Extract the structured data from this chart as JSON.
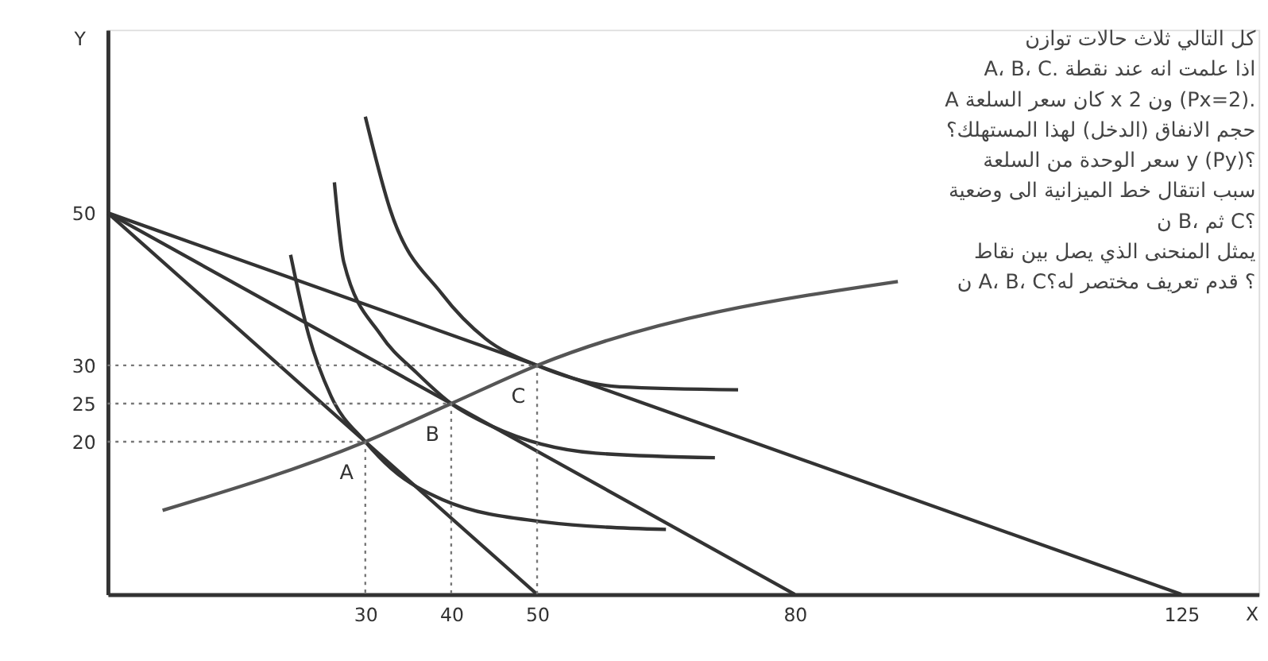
{
  "chart_data": {
    "type": "line",
    "xlabel": "X",
    "ylabel": "Y",
    "xlim": [
      0,
      134
    ],
    "ylim": [
      0,
      74
    ],
    "xticks": [
      30,
      40,
      50,
      80,
      125
    ],
    "yticks": [
      20,
      25,
      30,
      50
    ],
    "grid": false,
    "marker": "none",
    "series": [
      {
        "color": "#333333",
        "line_style": "solid",
        "x": [
          0,
          50
        ],
        "values": [
          50,
          0
        ]
      },
      {
        "color": "#333333",
        "line_style": "solid",
        "x": [
          0,
          80
        ],
        "values": [
          50,
          0
        ]
      },
      {
        "color": "#333333",
        "line_style": "solid",
        "x": [
          0,
          125
        ],
        "values": [
          50,
          0
        ]
      },
      {
        "color": "#333333",
        "line_style": "solid",
        "x": [
          21.3,
          23.4,
          26,
          30,
          33,
          39,
          50.7,
          65
        ],
        "values": [
          44.5,
          34,
          26,
          20,
          16.5,
          12.4,
          9.5,
          8.5
        ]
      },
      {
        "color": "#333333",
        "line_style": "solid",
        "x": [
          26.4,
          27.5,
          31.8,
          36,
          40,
          44.8,
          56.8,
          70.7
        ],
        "values": [
          54,
          43.5,
          34,
          29,
          25,
          22,
          18.5,
          17.9
        ]
      },
      {
        "color": "#333333",
        "line_style": "solid",
        "x": [
          30,
          32.9,
          38.9,
          44,
          50,
          59.6,
          73.4
        ],
        "values": [
          62.6,
          50.4,
          39.4,
          33.5,
          30,
          27.2,
          26.8
        ]
      },
      {
        "color": "#555555",
        "line_style": "solid",
        "x": [
          6.4,
          30,
          40,
          50,
          92
        ],
        "values": [
          11,
          20,
          25,
          30,
          41
        ]
      },
      {
        "color": "#777777",
        "line_style": "dotted",
        "x": [
          0,
          30,
          30
        ],
        "values": [
          20,
          20,
          0
        ]
      },
      {
        "color": "#777777",
        "line_style": "dotted",
        "x": [
          0,
          40,
          40
        ],
        "values": [
          25,
          25,
          0
        ]
      },
      {
        "color": "#777777",
        "line_style": "dotted",
        "x": [
          0,
          50,
          50
        ],
        "values": [
          30,
          30,
          0
        ]
      }
    ],
    "annotations": [
      {
        "text": "A",
        "x": 30,
        "y": 20
      },
      {
        "text": "B",
        "x": 40,
        "y": 25
      },
      {
        "text": "C",
        "x": 50,
        "y": 30
      },
      "كل التالي ثلاث حالات توازن",
      "A، B، C. اذا علمت انه عند نقطة",
      "A كان سعر السلعة x 2 ون (Px=2).",
      "حجم الانفاق (الدخل) لهذا المستهلك؟",
      "سعر الوحدة من السلعة y (Py)؟",
      "سبب انتقال خط الميزانية الى وضعية",
      "ن B، ثم C؟",
      "يمثل المنحنى الذي يصل بين نقاط",
      "ن A، B، C؟ قدم تعريف مختصر له؟"
    ]
  }
}
